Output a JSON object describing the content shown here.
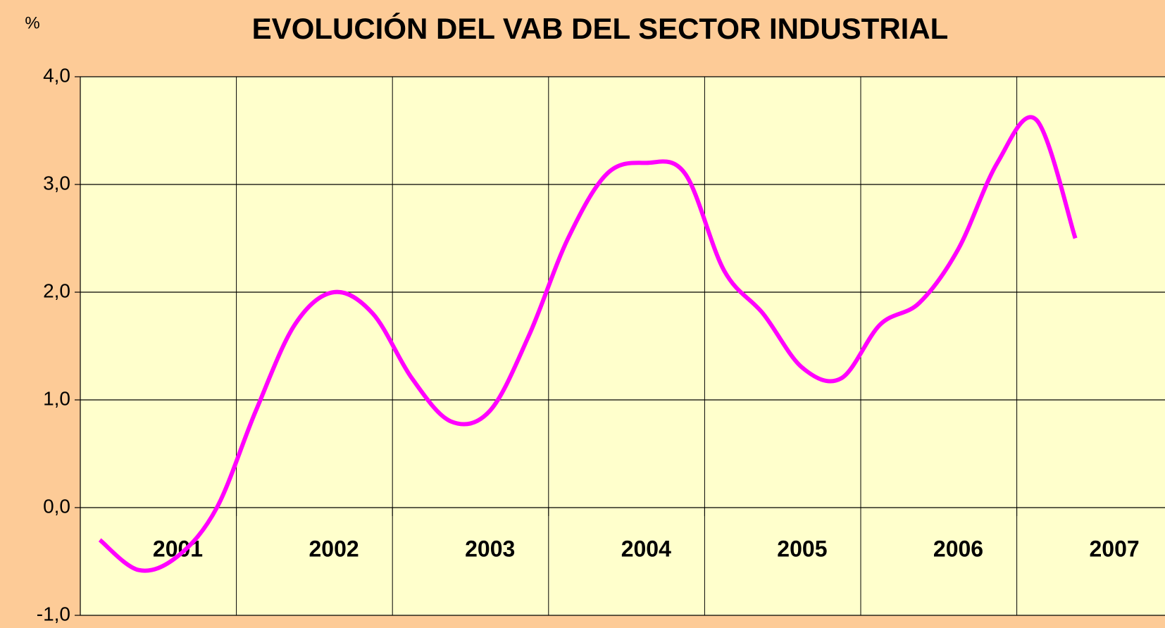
{
  "chart_data": {
    "type": "line",
    "title": "EVOLUCIÓN DEL VAB DEL SECTOR INDUSTRIAL",
    "y_label": "%",
    "categories": [
      null,
      null,
      "2001",
      null,
      null,
      null,
      "2002",
      null,
      null,
      null,
      "2003",
      null,
      null,
      null,
      "2004",
      null,
      null,
      null,
      "2005",
      null,
      null,
      null,
      "2006",
      null,
      null,
      null,
      "2007"
    ],
    "series": [
      {
        "name": "VAB sector industrial",
        "color": "#ff00ff",
        "values": [
          -0.3,
          -0.58,
          -0.45,
          0.0,
          0.9,
          1.7,
          2.0,
          1.8,
          1.2,
          0.8,
          0.9,
          1.6,
          2.5,
          3.1,
          3.2,
          3.1,
          2.2,
          1.8,
          1.3,
          1.2,
          1.7,
          1.9,
          2.4,
          3.2,
          3.6,
          2.5,
          null
        ]
      }
    ],
    "ylim": [
      -1,
      4
    ],
    "yticks": [
      {
        "value": -1,
        "label": "-1,0"
      },
      {
        "value": 0,
        "label": "0,0"
      },
      {
        "value": 1,
        "label": "1,0"
      },
      {
        "value": 2,
        "label": "2,0"
      },
      {
        "value": 3,
        "label": "3,0"
      },
      {
        "value": 4,
        "label": "4,0"
      }
    ],
    "grid": true
  }
}
